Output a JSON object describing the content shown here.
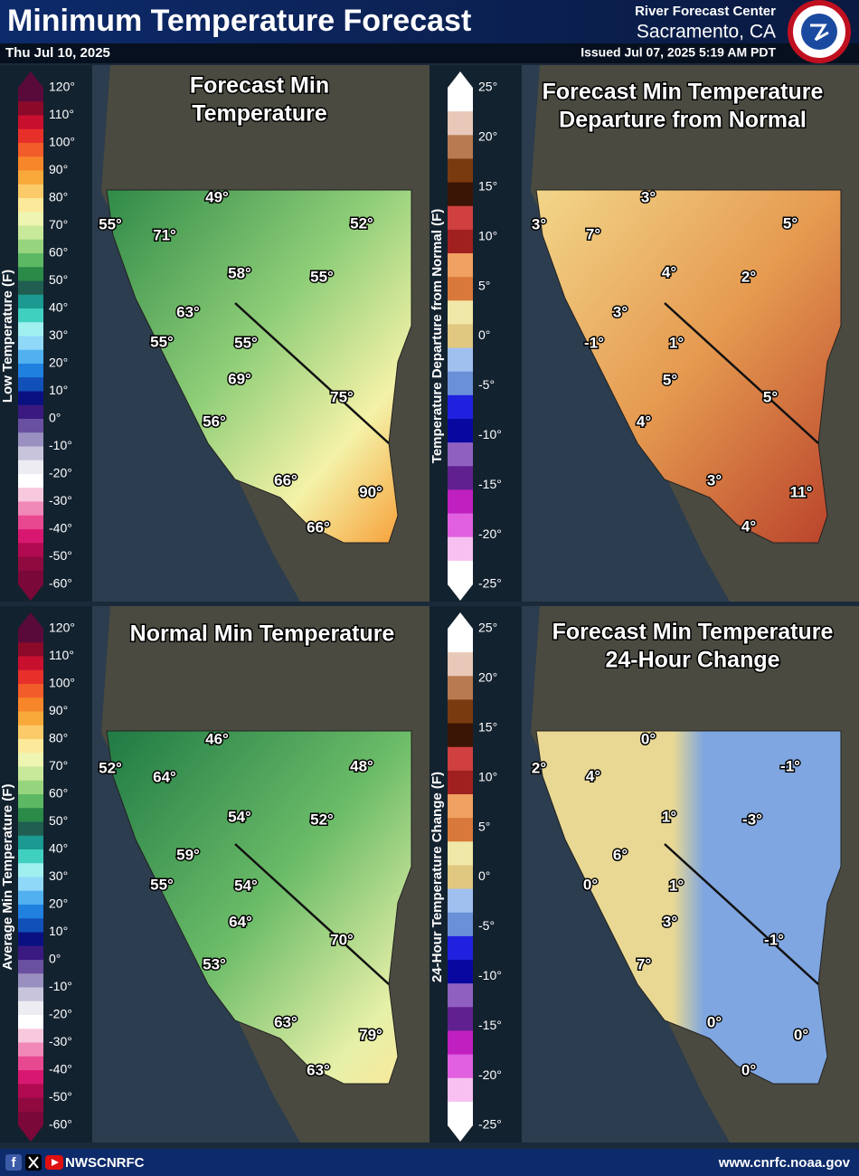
{
  "header": {
    "title": "Minimum Temperature Forecast",
    "date": "Thu Jul 10, 2025",
    "center": "River Forecast Center",
    "location": "Sacramento, CA",
    "issued": "Issued Jul 07, 2025 5:19 AM PDT"
  },
  "panels": [
    {
      "title": [
        "Forecast Min",
        "Temperature"
      ],
      "legend": {
        "title": "Low Temperature (F)",
        "ticks": [
          "120°",
          "110°",
          "100°",
          "90°",
          "80°",
          "70°",
          "60°",
          "50°",
          "40°",
          "30°",
          "20°",
          "10°",
          "0°",
          "-10°",
          "-20°",
          "-30°",
          "-40°",
          "-50°",
          "-60°"
        ]
      },
      "labels": [
        "55°",
        "71°",
        "49°",
        "52°",
        "58°",
        "55°",
        "63°",
        "55°",
        "55°",
        "69°",
        "75°",
        "56°",
        "66°",
        "90°",
        "66°"
      ]
    },
    {
      "title": [
        "Forecast Min Temperature",
        "Departure from Normal"
      ],
      "legend": {
        "title": "Temperature Departure from Normal (F)",
        "ticks": [
          "25°",
          "20°",
          "15°",
          "10°",
          "5°",
          "0°",
          "-5°",
          "-10°",
          "-15°",
          "-20°",
          "-25°"
        ]
      },
      "labels": [
        "3°",
        "3°",
        "7°",
        "5°",
        "4°",
        "2°",
        "3°",
        "-1°",
        "1°",
        "5°",
        "5°",
        "4°",
        "3°",
        "11°",
        "4°"
      ]
    },
    {
      "title": [
        "Normal Min Temperature"
      ],
      "legend": {
        "title": "Average Min Temperature (F)",
        "ticks": [
          "120°",
          "110°",
          "100°",
          "90°",
          "80°",
          "70°",
          "60°",
          "50°",
          "40°",
          "30°",
          "20°",
          "10°",
          "0°",
          "-10°",
          "-20°",
          "-30°",
          "-40°",
          "-50°",
          "-60°"
        ]
      },
      "labels": [
        "46°",
        "52°",
        "64°",
        "48°",
        "54°",
        "52°",
        "59°",
        "55°",
        "54°",
        "64°",
        "70°",
        "53°",
        "63°",
        "79°",
        "63°"
      ]
    },
    {
      "title": [
        "Forecast Min Temperature",
        "24-Hour Change"
      ],
      "legend": {
        "title": "24-Hour Temperature Change (F)",
        "ticks": [
          "25°",
          "20°",
          "15°",
          "10°",
          "5°",
          "0°",
          "-5°",
          "-10°",
          "-15°",
          "-20°",
          "-25°"
        ]
      },
      "labels": [
        "0°",
        "2°",
        "4°",
        "-1°",
        "1°",
        "-3°",
        "6°",
        "0°",
        "1°",
        "3°",
        "-1°",
        "7°",
        "0°",
        "0°",
        "0°"
      ]
    }
  ],
  "footer": {
    "handle": "NWSCNRFC",
    "url": "www.cnrfc.noaa.gov"
  }
}
